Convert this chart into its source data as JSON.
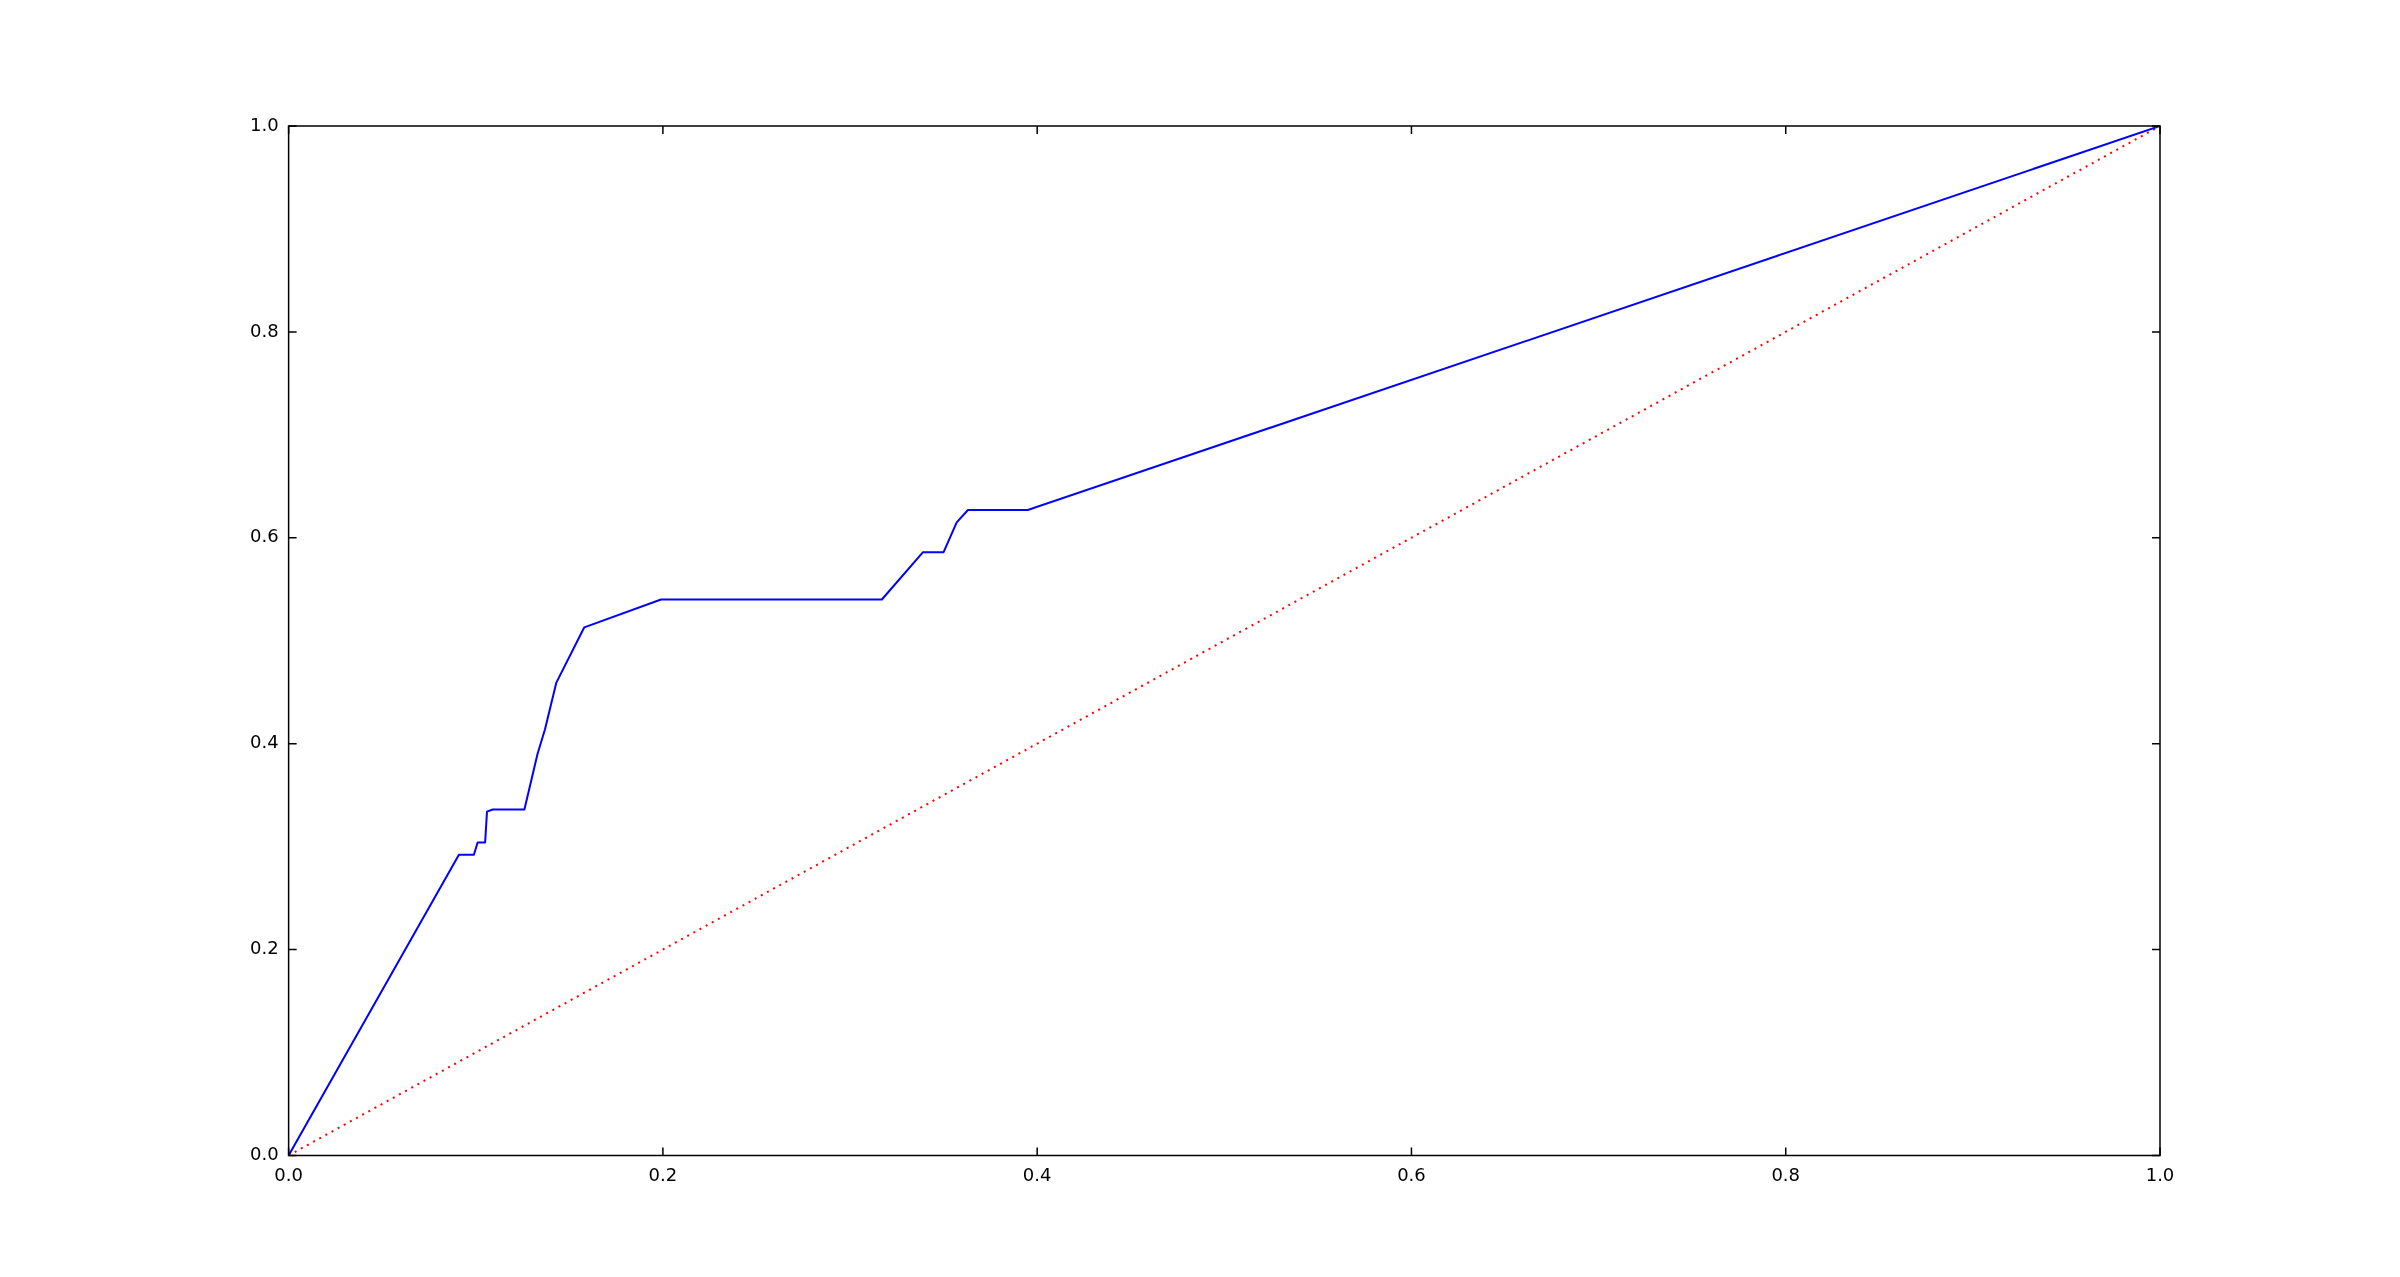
{
  "chart_data": {
    "type": "line",
    "xlim": [
      0,
      1
    ],
    "ylim": [
      0,
      1
    ],
    "xticks": [
      {
        "value": 0,
        "label": "0.0"
      },
      {
        "value": 0.2,
        "label": "0.2"
      },
      {
        "value": 0.4,
        "label": "0.4"
      },
      {
        "value": 0.6,
        "label": "0.6"
      },
      {
        "value": 0.8,
        "label": "0.8"
      },
      {
        "value": 1,
        "label": "1.0"
      }
    ],
    "yticks": [
      {
        "value": 0,
        "label": "0.0"
      },
      {
        "value": 0.2,
        "label": "0.2"
      },
      {
        "value": 0.4,
        "label": "0.4"
      },
      {
        "value": 0.6,
        "label": "0.6"
      },
      {
        "value": 0.8,
        "label": "0.8"
      },
      {
        "value": 1,
        "label": "1.0"
      }
    ],
    "grid": false,
    "legend": false,
    "marker": "none",
    "series": [
      {
        "color": "#0000ff",
        "line_style": "solid",
        "x": [
          0,
          0.091,
          0.099,
          0.101,
          0.105,
          0.106,
          0.109,
          0.126,
          0.133,
          0.137,
          0.143,
          0.158,
          0.199,
          0.317,
          0.339,
          0.35,
          0.357,
          0.363,
          0.395,
          1
        ],
        "values": [
          0,
          0.292,
          0.292,
          0.304,
          0.304,
          0.334,
          0.336,
          0.336,
          0.39,
          0.414,
          0.459,
          0.513,
          0.54,
          0.54,
          0.586,
          0.586,
          0.615,
          0.627,
          0.627,
          1
        ]
      },
      {
        "color": "#ff0000",
        "line_style": "dotted",
        "x": [
          0,
          1
        ],
        "values": [
          0,
          1
        ]
      }
    ]
  }
}
